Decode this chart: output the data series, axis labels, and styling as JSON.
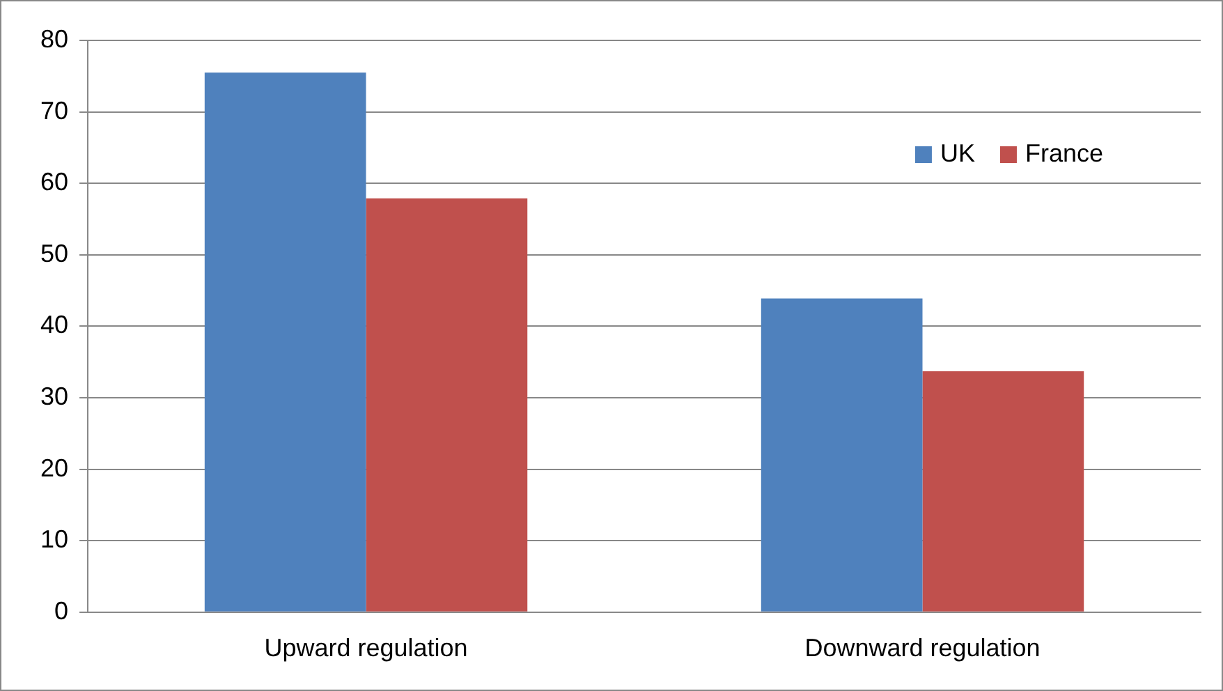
{
  "chart_data": {
    "type": "bar",
    "categories": [
      "Upward regulation",
      "Downward regulation"
    ],
    "series": [
      {
        "name": "UK",
        "color": "#4f81bd",
        "values": [
          75.5,
          43.9
        ]
      },
      {
        "name": "France",
        "color": "#c0504d",
        "values": [
          57.9,
          33.7
        ]
      }
    ],
    "ylim": [
      0,
      80
    ],
    "yticks": [
      0,
      10,
      20,
      30,
      40,
      50,
      60,
      70,
      80
    ],
    "grid": "y",
    "legend": "right"
  }
}
